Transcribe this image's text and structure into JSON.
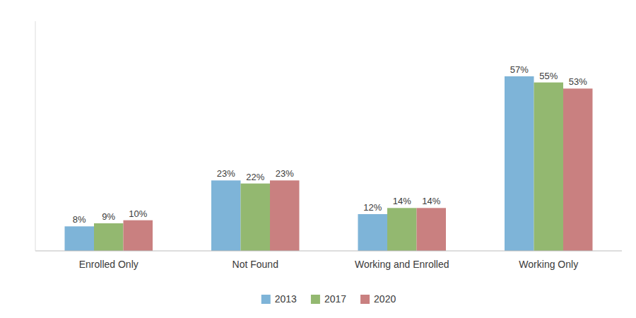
{
  "chart_data": {
    "type": "bar",
    "categories": [
      "Enrolled Only",
      "Not Found",
      "Working and Enrolled",
      "Working Only"
    ],
    "series": [
      {
        "name": "2013",
        "color": "#7EB4D8",
        "values": [
          8,
          23,
          12,
          57
        ],
        "value_labels": [
          "8%",
          "23%",
          "12%",
          "57%"
        ]
      },
      {
        "name": "2017",
        "color": "#93B870",
        "values": [
          9,
          22,
          14,
          55
        ],
        "value_labels": [
          "9%",
          "22%",
          "14%",
          "55%"
        ]
      },
      {
        "name": "2020",
        "color": "#C98080",
        "values": [
          10,
          23,
          14,
          53
        ],
        "value_labels": [
          "10%",
          "23%",
          "14%",
          "53%"
        ]
      }
    ],
    "ylim": [
      0,
      75
    ],
    "tick_labels": "x",
    "data_labels": true,
    "grid": false,
    "legend": "bottom"
  }
}
